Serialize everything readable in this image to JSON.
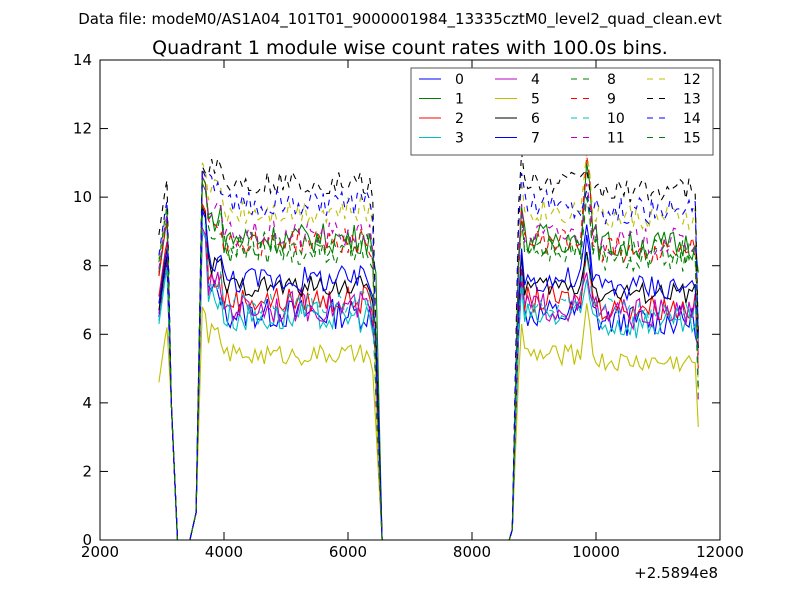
{
  "suptitle": "Data file: modeM0/AS1A04_101T01_9000001984_13335cztM0_level2_quad_clean.evt",
  "chart_data": {
    "type": "line",
    "title": "Quadrant 1 module wise count rates with 100.0s bins.",
    "xlabel": "",
    "ylabel": "",
    "x_offset_label": "+2.5894e8",
    "xlim": [
      2000,
      12000
    ],
    "ylim": [
      0,
      14
    ],
    "xticks": [
      2000,
      4000,
      6000,
      8000,
      10000,
      12000
    ],
    "yticks": [
      0,
      2,
      4,
      6,
      8,
      10,
      12,
      14
    ],
    "legend_location": "upper right",
    "legend_columns": 4,
    "series": [
      {
        "name": "0",
        "color": "#0000ff",
        "dash": "solid",
        "y1": 7.8,
        "y2": 9.6,
        "y3": 8.9,
        "level": 6.6,
        "end": 5.6,
        "jitter": 0.45
      },
      {
        "name": "1",
        "color": "#008000",
        "dash": "solid",
        "y1": 9.0,
        "y2": 10.4,
        "y3": 11.0,
        "level": 8.8,
        "end": 7.8,
        "jitter": 0.45
      },
      {
        "name": "2",
        "color": "#ff0000",
        "dash": "solid",
        "y1": 8.4,
        "y2": 9.8,
        "y3": 8.4,
        "level": 7.0,
        "end": 5.0,
        "jitter": 0.4
      },
      {
        "name": "3",
        "color": "#00bfbf",
        "dash": "solid",
        "y1": 7.6,
        "y2": 9.0,
        "y3": 7.6,
        "level": 6.5,
        "end": 5.6,
        "jitter": 0.45
      },
      {
        "name": "4",
        "color": "#bf00bf",
        "dash": "solid",
        "y1": 7.9,
        "y2": 9.1,
        "y3": 7.8,
        "level": 6.8,
        "end": 5.4,
        "jitter": 0.45
      },
      {
        "name": "5",
        "color": "#bfbf00",
        "dash": "solid",
        "y1": 5.9,
        "y2": 6.8,
        "y3": 6.9,
        "level": 5.4,
        "end": 3.3,
        "jitter": 0.3
      },
      {
        "name": "6",
        "color": "#000000",
        "dash": "solid",
        "y1": 8.0,
        "y2": 9.7,
        "y3": 8.4,
        "level": 7.4,
        "end": 5.6,
        "jitter": 0.3
      },
      {
        "name": "7",
        "color": "#0000ff",
        "dash": "solid",
        "y1": 8.2,
        "y2": 9.6,
        "y3": 9.2,
        "level": 7.6,
        "end": 6.0,
        "jitter": 0.4
      },
      {
        "name": "8",
        "color": "#008000",
        "dash": "dashed",
        "y1": 9.1,
        "y2": 10.6,
        "y3": 10.0,
        "level": 8.4,
        "end": 6.0,
        "jitter": 0.4
      },
      {
        "name": "9",
        "color": "#ff0000",
        "dash": "dashed",
        "y1": 9.0,
        "y2": 10.6,
        "y3": 11.2,
        "level": 8.7,
        "end": 6.0,
        "jitter": 0.4
      },
      {
        "name": "10",
        "color": "#00bfbf",
        "dash": "dashed",
        "y1": 7.7,
        "y2": 9.4,
        "y3": 8.3,
        "level": 6.9,
        "end": 4.2,
        "jitter": 0.35
      },
      {
        "name": "11",
        "color": "#bf00bf",
        "dash": "dashed",
        "y1": 9.2,
        "y2": 10.6,
        "y3": 10.4,
        "level": 8.9,
        "end": 4.0,
        "jitter": 0.4
      },
      {
        "name": "12",
        "color": "#bfbf00",
        "dash": "dashed",
        "y1": 9.5,
        "y2": 11.0,
        "y3": 11.3,
        "level": 9.6,
        "end": 4.2,
        "jitter": 0.4
      },
      {
        "name": "13",
        "color": "#000000",
        "dash": "dashed",
        "y1": 10.2,
        "y2": 10.9,
        "y3": 10.8,
        "level": 10.4,
        "end": 6.0,
        "jitter": 0.35
      },
      {
        "name": "14",
        "color": "#0000ff",
        "dash": "dashed",
        "y1": 9.6,
        "y2": 10.8,
        "y3": 10.2,
        "level": 9.8,
        "end": 5.8,
        "jitter": 0.4
      },
      {
        "name": "15",
        "color": "#008000",
        "dash": "dashed",
        "y1": 9.4,
        "y2": 10.6,
        "y3": 10.0,
        "level": 8.6,
        "end": 4.4,
        "jitter": 0.4
      }
    ]
  }
}
